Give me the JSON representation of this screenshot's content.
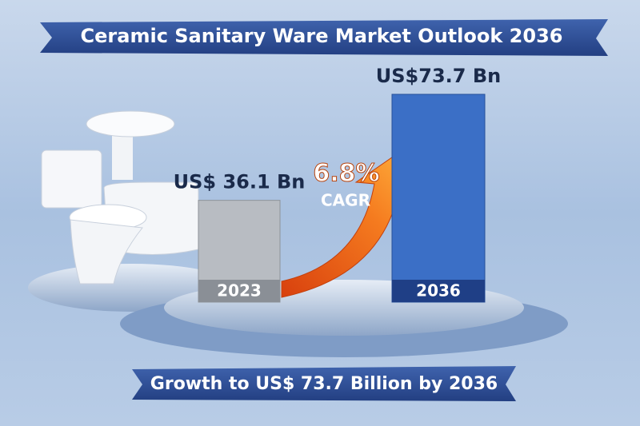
{
  "chart_data": {
    "type": "bar",
    "title": "Ceramic Sanitary Ware Market Outlook 2036",
    "categories": [
      "2023",
      "2036"
    ],
    "values": [
      36.1,
      73.7
    ],
    "value_labels": [
      "US$ 36.1 Bn",
      "US$73.7 Bn"
    ],
    "colors": [
      "#b8bcc2",
      "#3b6fc6"
    ],
    "annotation": {
      "rate": "6.8%",
      "label": "CAGR"
    },
    "footer": "Growth to US$ 73.7 Billion by 2036"
  }
}
